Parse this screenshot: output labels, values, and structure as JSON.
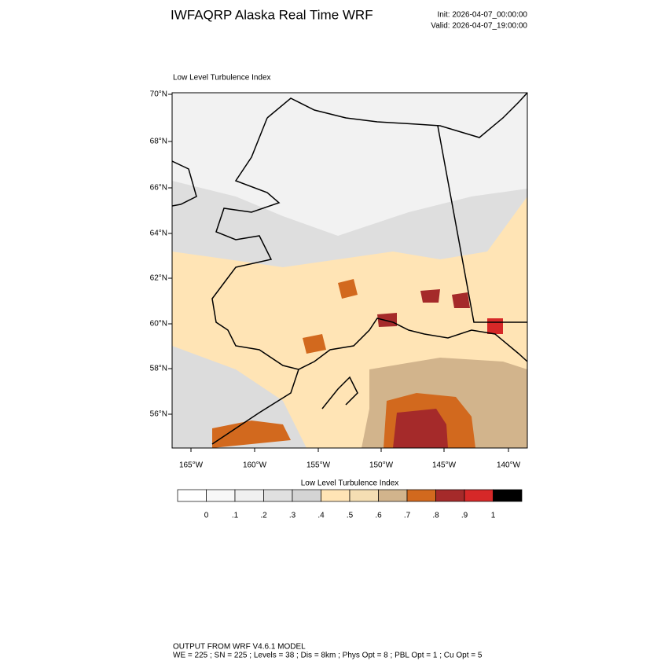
{
  "header": {
    "title": "IWFAQRP Alaska Real Time WRF",
    "init": "Init: 2026-04-07_00:00:00",
    "valid": "Valid: 2026-04-07_19:00:00"
  },
  "map": {
    "title": "Low Level Turbulence Index",
    "lat_labels": [
      "70°N",
      "68°N",
      "66°N",
      "64°N",
      "62°N",
      "60°N",
      "58°N",
      "56°N"
    ],
    "lon_labels": [
      "165°W",
      "160°W",
      "155°W",
      "150°W",
      "145°W",
      "140°W"
    ]
  },
  "colorbar": {
    "title": "Low Level Turbulence Index",
    "labels": [
      "0",
      ".1",
      ".2",
      ".3",
      ".4",
      ".5",
      ".6",
      ".7",
      ".8",
      ".9",
      "1"
    ],
    "colors": [
      "#ffffff",
      "#f8f8f8",
      "#f0f0f0",
      "#e0e0e0",
      "#d4d4d4",
      "#ffe4b5",
      "#f5deb3",
      "#d2b48c",
      "#d2691e",
      "#a52a2a",
      "#d62828",
      "#000000"
    ]
  },
  "footer": {
    "line1": "OUTPUT FROM WRF V4.6.1 MODEL",
    "line2": "WE = 225 ; SN = 225 ; Levels = 38 ; Dis = 8km ; Phys Opt = 8 ; PBL Opt = 1 ; Cu Opt = 5"
  }
}
